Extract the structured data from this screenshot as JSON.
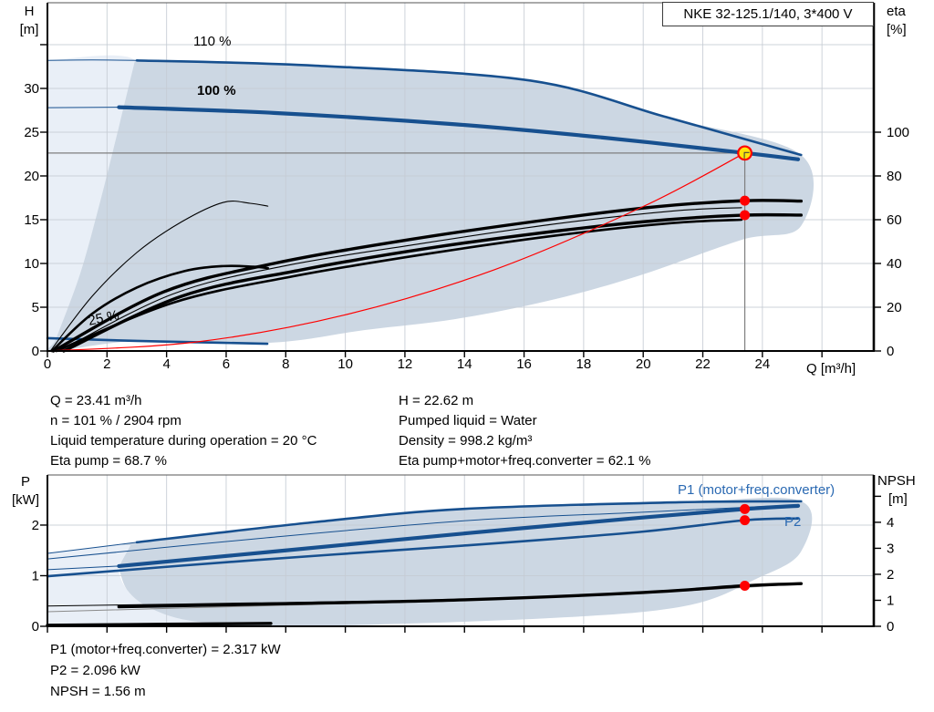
{
  "title_box": "NKE 32-125.1/140, 3*400 V",
  "colors": {
    "blue_curve": "#17508f",
    "blue_text": "#2a69b2",
    "red": "#ff0000",
    "yellow": "#ffe60a",
    "gray_line": "#7f7f7f",
    "grid": "#c6ccd4",
    "fill_light": "#e9eff7",
    "fill_dark": "#ccd7e3",
    "black": "#000000"
  },
  "top_chart": {
    "y_left_unit": {
      "line1": "H",
      "line2": "[m]"
    },
    "y_right_unit": {
      "line1": "eta",
      "line2": "[%]"
    },
    "x_title": "Q [m³/h]",
    "curve_labels": {
      "c110": "110 %",
      "c100": "100 %",
      "c25": "25 %"
    }
  },
  "bottom_chart": {
    "y_left_unit": {
      "line1": "P",
      "line2": "[kW]"
    },
    "y_right_unit": {
      "line1": "NPSH",
      "line2": "[m]"
    },
    "curve_labels": {
      "p1": "P1 (motor+freq.converter)",
      "p2": "P2"
    }
  },
  "info_top": {
    "left": [
      "Q = 23.41 m³/h",
      "n = 101 % / 2904 rpm",
      "Liquid temperature during operation = 20 °C",
      "Eta pump = 68.7 %"
    ],
    "right": [
      "H = 22.62 m",
      "Pumped liquid = Water",
      "Density = 998.2 kg/m³",
      "Eta pump+motor+freq.converter = 62.1 %"
    ]
  },
  "info_bottom": [
    "P1 (motor+freq.converter) = 2.317 kW",
    "P2 = 2.096 kW",
    "NPSH = 1.56 m"
  ],
  "operating_point": {
    "Q": 23.41,
    "H": 22.62,
    "eta_pump": 68.7,
    "eta_total": 62.1,
    "P1": 2.317,
    "P2": 2.096,
    "NPSH": 1.56
  },
  "chart_data": [
    {
      "type": "line",
      "title": "Q-H pump curves with efficiency",
      "xlabel": "Q [m³/h]",
      "ylabel": "H [m]",
      "y2label": "eta [%]",
      "x": {
        "domain": [
          0,
          27.74
        ],
        "px": [
          52,
          958
        ],
        "tick_marks": [
          0,
          2,
          4,
          6,
          8,
          10,
          12,
          14,
          16,
          18,
          20,
          22,
          24,
          26
        ],
        "tick_labels": [
          0,
          2,
          4,
          6,
          8,
          10,
          12,
          14,
          16,
          18,
          20,
          22,
          24
        ],
        "label_y": 404
      },
      "y": {
        "domain": [
          0,
          39.79
        ],
        "px": [
          385,
          3
        ],
        "tick_marks": [
          0,
          5,
          10,
          15,
          20,
          25,
          30,
          35
        ],
        "tick_labels": [
          0,
          5,
          10,
          15,
          20,
          25,
          30
        ],
        "grid": [
          5,
          10,
          15,
          20,
          25,
          30,
          35
        ]
      },
      "y2": {
        "domain": [
          0,
          100
        ],
        "px": [
          385,
          145
        ],
        "tick_marks": [
          0,
          20,
          40,
          60,
          80,
          100
        ],
        "tick_labels": [
          0,
          20,
          40,
          60,
          80,
          100
        ]
      },
      "fills": [
        {
          "name": "envelope-light",
          "color": "fill_light",
          "points": [
            [
              0,
              33.2
            ],
            [
              2.94,
              33.2
            ],
            [
              2.39,
              25.5
            ],
            [
              1.78,
              17.2
            ],
            [
              1.1,
              8.85
            ],
            [
              0.31,
              1.56
            ],
            [
              0,
              0
            ]
          ]
        },
        {
          "name": "envelope-dark",
          "color": "fill_dark",
          "points": [
            [
              2.94,
              33.2
            ],
            [
              9,
              32.6
            ],
            [
              16.2,
              30.9
            ],
            [
              20.8,
              26.7
            ],
            [
              25.3,
              22.4
            ],
            [
              25.3,
              14.3
            ],
            [
              23.3,
              12.7
            ],
            [
              19.8,
              8.54
            ],
            [
              16.8,
              5.73
            ],
            [
              13.7,
              3.65
            ],
            [
              10.66,
              2.4
            ],
            [
              7.44,
              0.94
            ],
            [
              3.0,
              1.15
            ],
            [
              0.15,
              0
            ],
            [
              0.31,
              1.56
            ],
            [
              1.1,
              8.85
            ],
            [
              1.78,
              17.2
            ],
            [
              2.39,
              25.5
            ]
          ]
        }
      ],
      "crosshair": {
        "q": 23.41,
        "v": 22.62
      },
      "series": [
        {
          "name": "speed-110-lead",
          "axis": "y",
          "style": "blue-thin",
          "points": [
            [
              0,
              33.2
            ],
            [
              1.5,
              33.25
            ],
            [
              3,
              33.2
            ]
          ]
        },
        {
          "name": "speed-110",
          "axis": "y",
          "style": "blue-med",
          "points": [
            [
              3,
              33.2
            ],
            [
              9,
              32.6
            ],
            [
              16.2,
              30.9
            ],
            [
              20.8,
              26.7
            ],
            [
              25.3,
              22.4
            ]
          ]
        },
        {
          "name": "speed-100-lead",
          "axis": "y",
          "style": "blue-thin",
          "points": [
            [
              0,
              27.8
            ],
            [
              2.4,
              27.85
            ]
          ]
        },
        {
          "name": "speed-100",
          "axis": "y",
          "style": "blue-thick",
          "points": [
            [
              2.4,
              27.85
            ],
            [
              7.6,
              27.2
            ],
            [
              13.7,
              25.9
            ],
            [
              18.6,
              24.4
            ],
            [
              23.41,
              22.62
            ],
            [
              25.2,
              21.9
            ]
          ]
        },
        {
          "name": "speed-25",
          "axis": "y",
          "style": "blue-med",
          "points": [
            [
              0,
              1.46
            ],
            [
              3,
              1.15
            ],
            [
              5.8,
              0.94
            ],
            [
              7.38,
              0.83
            ]
          ]
        },
        {
          "name": "eta-25-pump",
          "axis": "y2",
          "style": "black-thin",
          "points": [
            [
              0.1,
              0
            ],
            [
              1.5,
              25
            ],
            [
              3,
              45
            ],
            [
              4.5,
              59
            ],
            [
              5.9,
              67.9
            ],
            [
              6.8,
              67.5
            ],
            [
              7.4,
              66.2
            ]
          ]
        },
        {
          "name": "eta-25-total",
          "axis": "y2",
          "style": "black-med",
          "points": [
            [
              0.15,
              0
            ],
            [
              1.5,
              17
            ],
            [
              3,
              29
            ],
            [
              4.6,
              36.5
            ],
            [
              5.9,
              38.8
            ],
            [
              6.9,
              38.5
            ],
            [
              7.4,
              37.9
            ]
          ]
        },
        {
          "name": "eta-mid-thin",
          "axis": "y2",
          "style": "black-thin",
          "points": [
            [
              0.4,
              0
            ],
            [
              4.2,
              26
            ],
            [
              8,
              39
            ],
            [
              12.5,
              49
            ],
            [
              17,
              58
            ],
            [
              21,
              64
            ],
            [
              23.3,
              65.5
            ]
          ]
        },
        {
          "name": "eta-aux",
          "axis": "y2",
          "style": "black-med",
          "points": [
            [
              0.3,
              0
            ],
            [
              4.2,
              22
            ],
            [
              8.2,
              34
            ],
            [
              12.8,
              44.5
            ],
            [
              17.2,
              53
            ],
            [
              21,
              58.5
            ],
            [
              23.3,
              60
            ]
          ]
        },
        {
          "name": "eta-pump",
          "axis": "y2",
          "style": "black-thick",
          "points": [
            [
              0.2,
              0
            ],
            [
              3.9,
              27
            ],
            [
              7.6,
              40
            ],
            [
              12.2,
              51
            ],
            [
              16.8,
              60
            ],
            [
              20.5,
              66
            ],
            [
              23.41,
              68.7
            ],
            [
              25.3,
              68.5
            ]
          ]
        },
        {
          "name": "eta-total",
          "axis": "y2",
          "style": "black-thick",
          "points": [
            [
              0.55,
              0
            ],
            [
              4.5,
              25
            ],
            [
              8.5,
              37
            ],
            [
              12.8,
              47
            ],
            [
              17.2,
              55
            ],
            [
              20.8,
              60
            ],
            [
              23.41,
              62.1
            ],
            [
              25.3,
              62.1
            ]
          ]
        },
        {
          "name": "system-curve",
          "axis": "y",
          "style": "red-thin",
          "points": [
            [
              0,
              0
            ],
            [
              5,
              1.03
            ],
            [
              10,
              4.13
            ],
            [
              15,
              9.28
            ],
            [
              20,
              16.51
            ],
            [
              23.41,
              22.62
            ]
          ]
        }
      ],
      "points": [
        {
          "name": "duty-eta-pump",
          "q": 23.41,
          "v": 68.7,
          "axis": "y2",
          "style": "red-dot"
        },
        {
          "name": "duty-eta-total",
          "q": 23.41,
          "v": 62.1,
          "axis": "y2",
          "style": "red-dot"
        },
        {
          "name": "operating-point",
          "q": 23.41,
          "v": 22.62,
          "axis": "y",
          "style": "op"
        }
      ]
    },
    {
      "type": "line",
      "title": "Power and NPSH curves",
      "xlabel": "Q [m³/h]",
      "ylabel": "P [kW]",
      "y2label": "NPSH [m]",
      "x": {
        "domain": [
          0,
          27.74
        ],
        "px": [
          52,
          958
        ],
        "tick_marks": [
          0,
          2,
          4,
          6,
          8,
          10,
          12,
          14,
          16,
          18,
          20,
          22,
          24,
          26
        ],
        "tick_labels": [],
        "label_y": 0
      },
      "y": {
        "domain": [
          0,
          2.99
        ],
        "px": [
          687,
          521
        ],
        "tick_marks": [
          0,
          1,
          2
        ],
        "tick_labels": [
          0,
          1,
          2
        ],
        "grid": [
          1,
          2
        ]
      },
      "y2": {
        "domain": [
          0,
          5.82
        ],
        "px": [
          687,
          521
        ],
        "tick_marks": [
          0,
          1,
          2,
          3,
          4,
          5
        ],
        "tick_labels": [
          0,
          1,
          2,
          3,
          4
        ]
      },
      "fills": [
        {
          "name": "envelope-light",
          "color": "fill_light",
          "points": [
            [
              0,
              1.44
            ],
            [
              2.79,
              1.6
            ],
            [
              2.39,
              1.17
            ],
            [
              2.7,
              0.7
            ],
            [
              3.52,
              0.34
            ],
            [
              5.05,
              0.09
            ],
            [
              7.6,
              0
            ],
            [
              0,
              0
            ]
          ]
        },
        {
          "name": "envelope-dark",
          "color": "fill_dark",
          "points": [
            [
              2.79,
              1.6
            ],
            [
              3,
              1.66
            ],
            [
              9,
              2.06
            ],
            [
              14,
              2.32
            ],
            [
              21.2,
              2.45
            ],
            [
              25.3,
              2.47
            ],
            [
              25.3,
              1.48
            ],
            [
              23.8,
              0.94
            ],
            [
              21.4,
              0.4
            ],
            [
              16.8,
              0.16
            ],
            [
              8.2,
              0
            ],
            [
              5.05,
              0.09
            ],
            [
              3.52,
              0.34
            ],
            [
              2.7,
              0.7
            ],
            [
              2.39,
              1.17
            ]
          ]
        }
      ],
      "series": [
        {
          "name": "p1-110-lead",
          "axis": "y",
          "style": "blue-thin",
          "points": [
            [
              0,
              1.44
            ],
            [
              3,
              1.66
            ]
          ]
        },
        {
          "name": "p1-110",
          "axis": "y",
          "style": "blue-med",
          "points": [
            [
              3,
              1.66
            ],
            [
              9,
              2.06
            ],
            [
              14,
              2.32
            ],
            [
              21.2,
              2.45
            ],
            [
              25.3,
              2.47
            ]
          ]
        },
        {
          "name": "p1-mid-thin",
          "axis": "y",
          "style": "blue-thin",
          "points": [
            [
              0,
              1.33
            ],
            [
              7,
              1.73
            ],
            [
              14.1,
              2.09
            ],
            [
              19.8,
              2.25
            ],
            [
              25.2,
              2.4
            ]
          ]
        },
        {
          "name": "p1-lead",
          "axis": "y",
          "style": "blue-thin",
          "points": [
            [
              0,
              1.12
            ],
            [
              2.4,
              1.19
            ]
          ]
        },
        {
          "name": "p1",
          "axis": "y",
          "style": "blue-thick",
          "points": [
            [
              2.4,
              1.19
            ],
            [
              8,
              1.5
            ],
            [
              14.1,
              1.84
            ],
            [
              19.8,
              2.14
            ],
            [
              23.41,
              2.317
            ],
            [
              25.2,
              2.38
            ]
          ]
        },
        {
          "name": "p2",
          "axis": "y",
          "style": "blue-med",
          "points": [
            [
              0,
              0.99
            ],
            [
              7,
              1.31
            ],
            [
              14.1,
              1.6
            ],
            [
              19.8,
              1.86
            ],
            [
              23.41,
              2.096
            ],
            [
              25.2,
              2.13
            ]
          ]
        },
        {
          "name": "npsh-gray",
          "axis": "y2",
          "style": "gray-thin",
          "points": [
            [
              0,
              0.56
            ],
            [
              7,
              0.78
            ],
            [
              14,
              1.0
            ],
            [
              20,
              1.28
            ],
            [
              25.3,
              1.63
            ]
          ]
        },
        {
          "name": "npsh-thin",
          "axis": "y2",
          "style": "black-thin",
          "points": [
            [
              0,
              0.78
            ],
            [
              7,
              0.9
            ],
            [
              14,
              1.03
            ],
            [
              20,
              1.31
            ],
            [
              25.3,
              1.66
            ]
          ]
        },
        {
          "name": "npsh",
          "axis": "y2",
          "style": "black-thick",
          "points": [
            [
              2.4,
              0.75
            ],
            [
              8,
              0.87
            ],
            [
              14,
              1.02
            ],
            [
              20,
              1.3
            ],
            [
              23.41,
              1.56
            ],
            [
              25.3,
              1.64
            ]
          ]
        },
        {
          "name": "npsh-25",
          "axis": "y2",
          "style": "black-thick",
          "points": [
            [
              0,
              0.04
            ],
            [
              4,
              0.08
            ],
            [
              7.5,
              0.11
            ]
          ]
        }
      ],
      "points": [
        {
          "name": "duty-p1",
          "q": 23.41,
          "v": 2.317,
          "axis": "y",
          "style": "red-dot"
        },
        {
          "name": "duty-p2",
          "q": 23.41,
          "v": 2.096,
          "axis": "y",
          "style": "red-dot"
        },
        {
          "name": "duty-npsh",
          "q": 23.41,
          "v": 1.56,
          "axis": "y2",
          "style": "red-dot"
        }
      ]
    }
  ]
}
